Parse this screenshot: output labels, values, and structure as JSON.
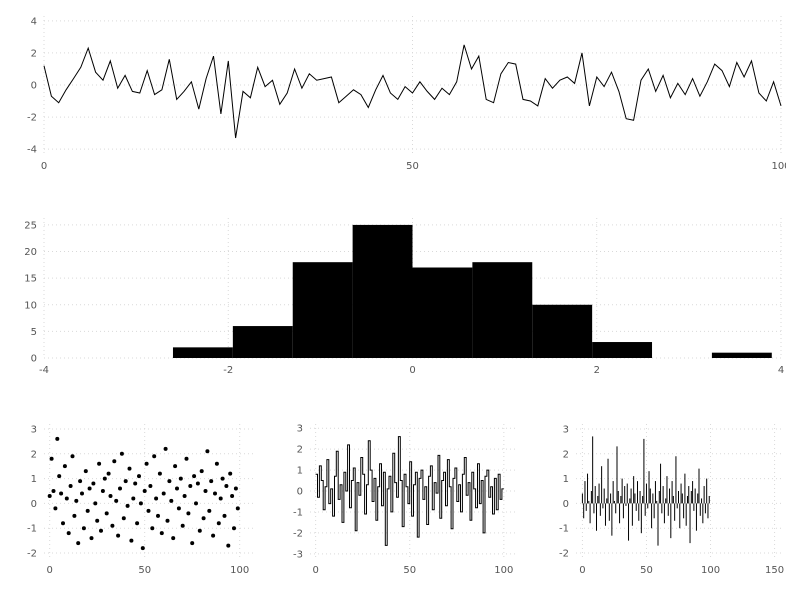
{
  "figure": {
    "title": "",
    "colors": {
      "background": "#ffffff",
      "grid": "#d9d9d9",
      "tick_label": "#555555",
      "series": "#000000"
    },
    "grid_style": "dotted"
  },
  "chart_data": [
    {
      "type": "line",
      "title": "",
      "xlabel": "",
      "ylabel": "",
      "x_range": [
        0,
        100
      ],
      "y_range": [
        -4.3,
        4.3
      ],
      "x_ticks": [
        0,
        50,
        100
      ],
      "y_ticks": [
        -4,
        -2,
        0,
        2,
        4
      ],
      "grid": true,
      "values": [
        1.2,
        -0.7,
        -1.1,
        -0.3,
        0.4,
        1.1,
        2.3,
        0.8,
        0.3,
        1.5,
        -0.2,
        0.6,
        -0.4,
        -0.5,
        0.9,
        -0.6,
        -0.3,
        1.6,
        -0.9,
        -0.4,
        0.2,
        -1.5,
        0.4,
        1.8,
        -1.8,
        1.5,
        -3.3,
        -0.4,
        -0.8,
        1.1,
        -0.1,
        0.3,
        -1.2,
        -0.5,
        1.0,
        -0.2,
        0.7,
        0.3,
        0.4,
        0.5,
        -1.1,
        -0.7,
        -0.3,
        -0.6,
        -1.4,
        -0.3,
        0.6,
        -0.5,
        -0.9,
        -0.1,
        -0.5,
        0.2,
        -0.4,
        -0.9,
        -0.2,
        -0.6,
        0.2,
        2.5,
        1.0,
        1.8,
        -0.9,
        -1.1,
        0.7,
        1.4,
        1.3,
        -0.9,
        -1.0,
        -1.3,
        0.4,
        -0.2,
        0.3,
        0.5,
        0.1,
        2.0,
        -1.3,
        0.5,
        -0.1,
        0.8,
        -0.4,
        -2.1,
        -2.2,
        0.3,
        1.0,
        -0.4,
        0.6,
        -0.8,
        0.1,
        -0.6,
        0.4,
        -0.7,
        0.2,
        1.3,
        0.9,
        -0.1,
        1.4,
        0.5,
        1.5,
        -0.5,
        -1.0,
        0.2,
        -1.3
      ]
    },
    {
      "type": "histogram",
      "title": "",
      "xlabel": "",
      "ylabel": "",
      "x_range": [
        -4,
        4
      ],
      "y_range": [
        0,
        26.3
      ],
      "x_ticks": [
        -4,
        -2,
        0,
        2,
        4
      ],
      "y_ticks": [
        0,
        5,
        10,
        15,
        20,
        25
      ],
      "grid": true,
      "bin_edges": [
        -2.6,
        -1.95,
        -1.3,
        -0.65,
        0.0,
        0.65,
        1.3,
        1.95,
        2.6,
        3.25,
        3.9
      ],
      "counts": [
        2,
        6,
        18,
        25,
        17,
        18,
        10,
        3,
        0,
        1
      ]
    },
    {
      "type": "scatter",
      "title": "",
      "xlabel": "",
      "ylabel": "",
      "x_range": [
        -3,
        107
      ],
      "y_range": [
        -2.2,
        3.2
      ],
      "x_ticks": [
        0,
        50,
        100
      ],
      "y_ticks": [
        -2,
        -1,
        0,
        1,
        2,
        3
      ],
      "grid": true,
      "values": [
        0.3,
        1.8,
        0.5,
        -0.2,
        2.6,
        1.1,
        0.4,
        -0.8,
        1.5,
        0.2,
        -1.2,
        0.7,
        1.9,
        -0.5,
        0.1,
        -1.6,
        0.9,
        0.4,
        -1.0,
        1.3,
        -0.3,
        0.6,
        -1.4,
        0.8,
        0.0,
        -0.7,
        1.6,
        -1.1,
        0.5,
        1.0,
        -0.4,
        1.2,
        0.3,
        -0.9,
        1.7,
        0.1,
        -1.3,
        0.6,
        2.0,
        -0.6,
        0.9,
        -0.1,
        1.4,
        -1.5,
        0.2,
        0.8,
        -0.8,
        1.1,
        0.0,
        -1.8,
        0.5,
        1.6,
        -0.3,
        0.7,
        -1.0,
        1.9,
        0.2,
        -0.5,
        1.2,
        -1.2,
        0.4,
        2.2,
        -0.7,
        0.9,
        0.1,
        -1.4,
        1.5,
        0.6,
        -0.2,
        1.0,
        -0.9,
        0.3,
        1.8,
        -0.4,
        0.7,
        -1.6,
        1.1,
        0.0,
        0.8,
        -1.1,
        1.3,
        -0.6,
        0.5,
        2.1,
        -0.3,
        0.9,
        -1.3,
        0.4,
        1.6,
        -0.8,
        0.2,
        1.0,
        -0.5,
        0.7,
        -1.7,
        1.2,
        0.3,
        -1.0,
        0.6,
        -0.2
      ]
    },
    {
      "type": "step",
      "title": "",
      "xlabel": "",
      "ylabel": "",
      "x_range": [
        -3,
        107
      ],
      "y_range": [
        -3.2,
        3.2
      ],
      "x_ticks": [
        0,
        50,
        100
      ],
      "y_ticks": [
        -3,
        -2,
        -1,
        0,
        1,
        2,
        3
      ],
      "grid": true,
      "values": [
        0.8,
        -0.3,
        1.2,
        0.5,
        -0.9,
        0.2,
        1.5,
        -0.6,
        0.1,
        -1.2,
        0.7,
        1.9,
        -0.4,
        0.3,
        -1.5,
        0.9,
        0.0,
        2.2,
        -0.8,
        0.5,
        1.1,
        -1.9,
        0.4,
        -0.2,
        1.6,
        0.8,
        -1.1,
        0.3,
        2.4,
        1.0,
        -0.5,
        0.6,
        -1.4,
        0.2,
        1.3,
        -0.7,
        0.9,
        -2.6,
        0.1,
        0.7,
        -1.0,
        1.8,
        0.4,
        -0.3,
        2.6,
        0.5,
        -1.7,
        0.8,
        0.2,
        -0.6,
        1.4,
        -1.2,
        0.3,
        0.9,
        -2.2,
        0.6,
        1.0,
        -0.4,
        0.2,
        -1.6,
        0.7,
        1.2,
        -0.9,
        0.4,
        -0.1,
        1.7,
        -1.3,
        0.5,
        0.9,
        -0.7,
        1.5,
        0.2,
        -1.8,
        0.6,
        1.1,
        -0.5,
        0.3,
        -1.0,
        0.8,
        1.6,
        -0.2,
        0.4,
        -1.4,
        0.9,
        0.1,
        -0.8,
        1.3,
        -0.6,
        0.5,
        -2.0,
        0.7,
        1.0,
        -0.3,
        0.2,
        -1.1,
        0.6,
        -0.9,
        0.8,
        -0.4,
        0.1
      ]
    },
    {
      "type": "stem",
      "title": "",
      "xlabel": "",
      "ylabel": "",
      "x_range": [
        -5,
        155
      ],
      "y_range": [
        -2.2,
        3.2
      ],
      "x_ticks": [
        0,
        50,
        100,
        150
      ],
      "y_ticks": [
        -2,
        -1,
        0,
        1,
        2,
        3
      ],
      "grid": true,
      "values": [
        0.4,
        -0.6,
        0.9,
        -0.3,
        1.2,
        0.1,
        -0.8,
        0.5,
        2.7,
        -0.4,
        0.7,
        -1.1,
        0.3,
        0.8,
        -0.5,
        1.5,
        -0.2,
        0.6,
        -0.9,
        0.2,
        1.8,
        -0.7,
        0.4,
        -1.3,
        0.9,
        0.1,
        -0.4,
        2.3,
        0.5,
        -0.8,
        0.3,
        1.0,
        -0.6,
        0.7,
        -0.1,
        0.8,
        -1.5,
        0.2,
        0.6,
        -0.9,
        1.1,
        0.4,
        -0.3,
        0.9,
        -0.7,
        0.5,
        -1.2,
        0.3,
        2.6,
        -0.5,
        0.8,
        -0.2,
        1.3,
        0.6,
        -1.0,
        0.4,
        -0.6,
        0.9,
        0.1,
        -1.7,
        0.5,
        1.6,
        -0.4,
        0.7,
        -0.8,
        0.2,
        1.1,
        -0.5,
        0.6,
        -1.4,
        0.9,
        0.3,
        -0.7,
        1.9,
        -0.2,
        0.5,
        -1.0,
        0.8,
        0.4,
        -0.6,
        1.2,
        -0.9,
        0.3,
        0.7,
        -1.6,
        0.5,
        0.9,
        -0.3,
        0.6,
        -1.1,
        0.4,
        1.4,
        -0.5,
        0.2,
        -0.8,
        0.7,
        -0.4,
        1.0,
        -0.6,
        0.3
      ]
    }
  ]
}
